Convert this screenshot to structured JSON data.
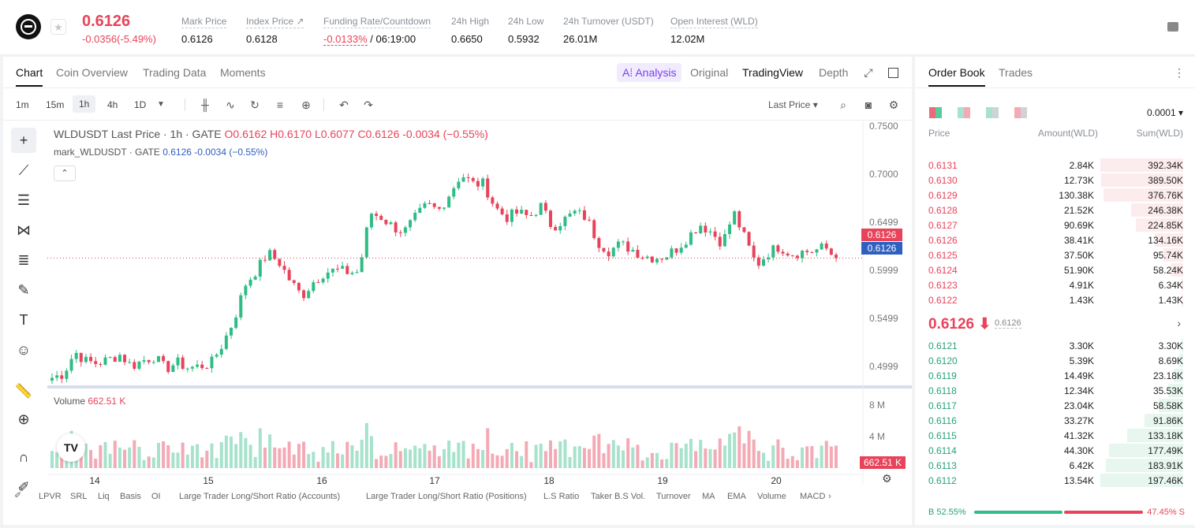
{
  "header": {
    "price": "0.6126",
    "change": "-0.0356(-5.49%)",
    "stats": [
      {
        "label": "Mark Price",
        "value": "0.6126"
      },
      {
        "label": "Index Price ↗",
        "value": "0.6128"
      },
      {
        "label": "Funding Rate/Countdown",
        "value_rate": "-0.0133%",
        "value_rest": " / 06:19:00"
      },
      {
        "label": "24h High",
        "value": "0.6650"
      },
      {
        "label": "24h Low",
        "value": "0.5932"
      },
      {
        "label": "24h Turnover (USDT)",
        "value": "26.01M"
      },
      {
        "label": "Open Interest (WLD)",
        "value": "12.02M"
      }
    ]
  },
  "chart_tabs": [
    "Chart",
    "Coin Overview",
    "Trading Data",
    "Moments"
  ],
  "view_tabs": {
    "ai": "A⁞ Analysis",
    "original": "Original",
    "tradingview": "TradingView",
    "depth": "Depth"
  },
  "timeframes": [
    "1m",
    "15m",
    "1h",
    "4h",
    "1D"
  ],
  "last_price_select": "Last Price",
  "legend": {
    "symbol": "WLDUSDT Last Price · 1h · GATE",
    "ohlc": "O0.6162  H0.6170  L0.6077  C0.6126  -0.0034 (−0.55%)",
    "mark": "mark_WLDUSDT · GATE",
    "mark_vals": "0.6126  -0.0034 (−0.55%)"
  },
  "volume": {
    "label": "Volume",
    "value": "662.51 K"
  },
  "price_tags": {
    "last": "0.6126",
    "mark": "0.6126",
    "volume": "662.51 K"
  },
  "indicators": [
    "LPVR",
    "SRL",
    "Liq",
    "Basis",
    "OI",
    "Large Trader Long/Short Ratio (Accounts)",
    "Large Trader Long/Short Ratio (Positions)",
    "L.S Ratio",
    "Taker B.S Vol.",
    "Turnover",
    "MA",
    "EMA",
    "Volume",
    "MACD"
  ],
  "chart_data": {
    "type": "candlestick",
    "title": "WLDUSDT Last Price · 1h · GATE",
    "y_ticks": [
      "0.7500",
      "0.7000",
      "0.6499",
      "0.5999",
      "0.5499",
      "0.4999"
    ],
    "y_tick_values": [
      0.75,
      0.7,
      0.6499,
      0.5999,
      0.5499,
      0.4999
    ],
    "x_ticks": [
      "14",
      "15",
      "16",
      "17",
      "18",
      "19",
      "20"
    ],
    "vol_ticks": [
      "8 M",
      "4 M"
    ],
    "ylim": [
      0.48,
      0.755
    ],
    "last_price": 0.6126,
    "close_path": [
      0.488,
      0.492,
      0.515,
      0.505,
      0.503,
      0.507,
      0.512,
      0.5,
      0.506,
      0.51,
      0.497,
      0.504,
      0.498,
      0.5,
      0.503,
      0.523,
      0.548,
      0.585,
      0.6,
      0.618,
      0.608,
      0.588,
      0.573,
      0.588,
      0.598,
      0.6,
      0.598,
      0.598,
      0.66,
      0.655,
      0.645,
      0.64,
      0.655,
      0.668,
      0.662,
      0.68,
      0.7,
      0.69,
      0.69,
      0.665,
      0.655,
      0.66,
      0.655,
      0.667,
      0.645,
      0.652,
      0.66,
      0.655,
      0.63,
      0.62,
      0.627,
      0.622,
      0.615,
      0.613,
      0.615,
      0.623,
      0.635,
      0.648,
      0.64,
      0.628,
      0.66,
      0.632,
      0.605,
      0.618,
      0.625,
      0.617,
      0.619,
      0.62,
      0.624,
      0.612
    ],
    "volume_max_m": 9.5
  },
  "orderbook": {
    "tabs": [
      "Order Book",
      "Trades"
    ],
    "precision": "0.0001",
    "headers": {
      "price": "Price",
      "amount": "Amount(WLD)",
      "sum": "Sum(WLD)"
    },
    "asks": [
      {
        "price": "0.6131",
        "amount": "2.84K",
        "sum": "392.34K",
        "depth": 1.0
      },
      {
        "price": "0.6130",
        "amount": "12.73K",
        "sum": "389.50K",
        "depth": 0.99
      },
      {
        "price": "0.6129",
        "amount": "130.38K",
        "sum": "376.76K",
        "depth": 0.96
      },
      {
        "price": "0.6128",
        "amount": "21.52K",
        "sum": "246.38K",
        "depth": 0.63
      },
      {
        "price": "0.6127",
        "amount": "90.69K",
        "sum": "224.85K",
        "depth": 0.57
      },
      {
        "price": "0.6126",
        "amount": "38.41K",
        "sum": "134.16K",
        "depth": 0.34
      },
      {
        "price": "0.6125",
        "amount": "37.50K",
        "sum": "95.74K",
        "depth": 0.24
      },
      {
        "price": "0.6124",
        "amount": "51.90K",
        "sum": "58.24K",
        "depth": 0.15
      },
      {
        "price": "0.6123",
        "amount": "4.91K",
        "sum": "6.34K",
        "depth": 0.016
      },
      {
        "price": "0.6122",
        "amount": "1.43K",
        "sum": "1.43K",
        "depth": 0.004
      }
    ],
    "mid_price": "0.6126 ⬇",
    "mid_mark": "0.6126",
    "bids": [
      {
        "price": "0.6121",
        "amount": "3.30K",
        "sum": "3.30K",
        "depth": 0.017
      },
      {
        "price": "0.6120",
        "amount": "5.39K",
        "sum": "8.69K",
        "depth": 0.044
      },
      {
        "price": "0.6119",
        "amount": "14.49K",
        "sum": "23.18K",
        "depth": 0.117
      },
      {
        "price": "0.6118",
        "amount": "12.34K",
        "sum": "35.53K",
        "depth": 0.18
      },
      {
        "price": "0.6117",
        "amount": "23.04K",
        "sum": "58.58K",
        "depth": 0.297
      },
      {
        "price": "0.6116",
        "amount": "33.27K",
        "sum": "91.86K",
        "depth": 0.465
      },
      {
        "price": "0.6115",
        "amount": "41.32K",
        "sum": "133.18K",
        "depth": 0.674
      },
      {
        "price": "0.6114",
        "amount": "44.30K",
        "sum": "177.49K",
        "depth": 0.899
      },
      {
        "price": "0.6113",
        "amount": "6.42K",
        "sum": "183.91K",
        "depth": 0.931
      },
      {
        "price": "0.6112",
        "amount": "13.54K",
        "sum": "197.46K",
        "depth": 1.0
      }
    ],
    "buy_ratio": "B 52.55%",
    "sell_ratio": "47.45% S"
  },
  "colors": {
    "up": "#2ebd85",
    "down": "#e8435a",
    "up_vol": "#a6e2cc",
    "down_vol": "#f3aab5",
    "accent_ai": "#7b3ff2"
  }
}
